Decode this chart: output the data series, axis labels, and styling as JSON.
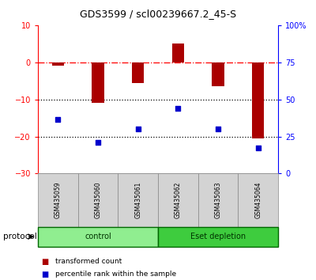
{
  "title": "GDS3599 / scl00239667.2_45-S",
  "samples": [
    "GSM435059",
    "GSM435060",
    "GSM435061",
    "GSM435062",
    "GSM435063",
    "GSM435064"
  ],
  "red_values": [
    -1.0,
    -11.0,
    -5.5,
    5.0,
    -6.5,
    -20.5
  ],
  "blue_values": [
    -15.5,
    -21.5,
    -18.0,
    -12.5,
    -18.0,
    -23.0
  ],
  "ylim_left": [
    -30,
    10
  ],
  "ylim_right": [
    0,
    100
  ],
  "left_ticks": [
    10,
    0,
    -10,
    -20,
    -30
  ],
  "right_ticks": [
    100,
    75,
    50,
    25,
    0
  ],
  "groups": [
    {
      "label": "control",
      "start": 0,
      "end": 3,
      "color": "#90EE90"
    },
    {
      "label": "Eset depletion",
      "start": 3,
      "end": 6,
      "color": "#3ECC3E"
    }
  ],
  "protocol_label": "protocol",
  "legend_red": "transformed count",
  "legend_blue": "percentile rank within the sample",
  "bar_color": "#AA0000",
  "dot_color": "#0000CC",
  "bar_width": 0.3,
  "title_fontsize": 9,
  "sample_box_color": "#d3d3d3",
  "sample_box_edge": "#888888"
}
